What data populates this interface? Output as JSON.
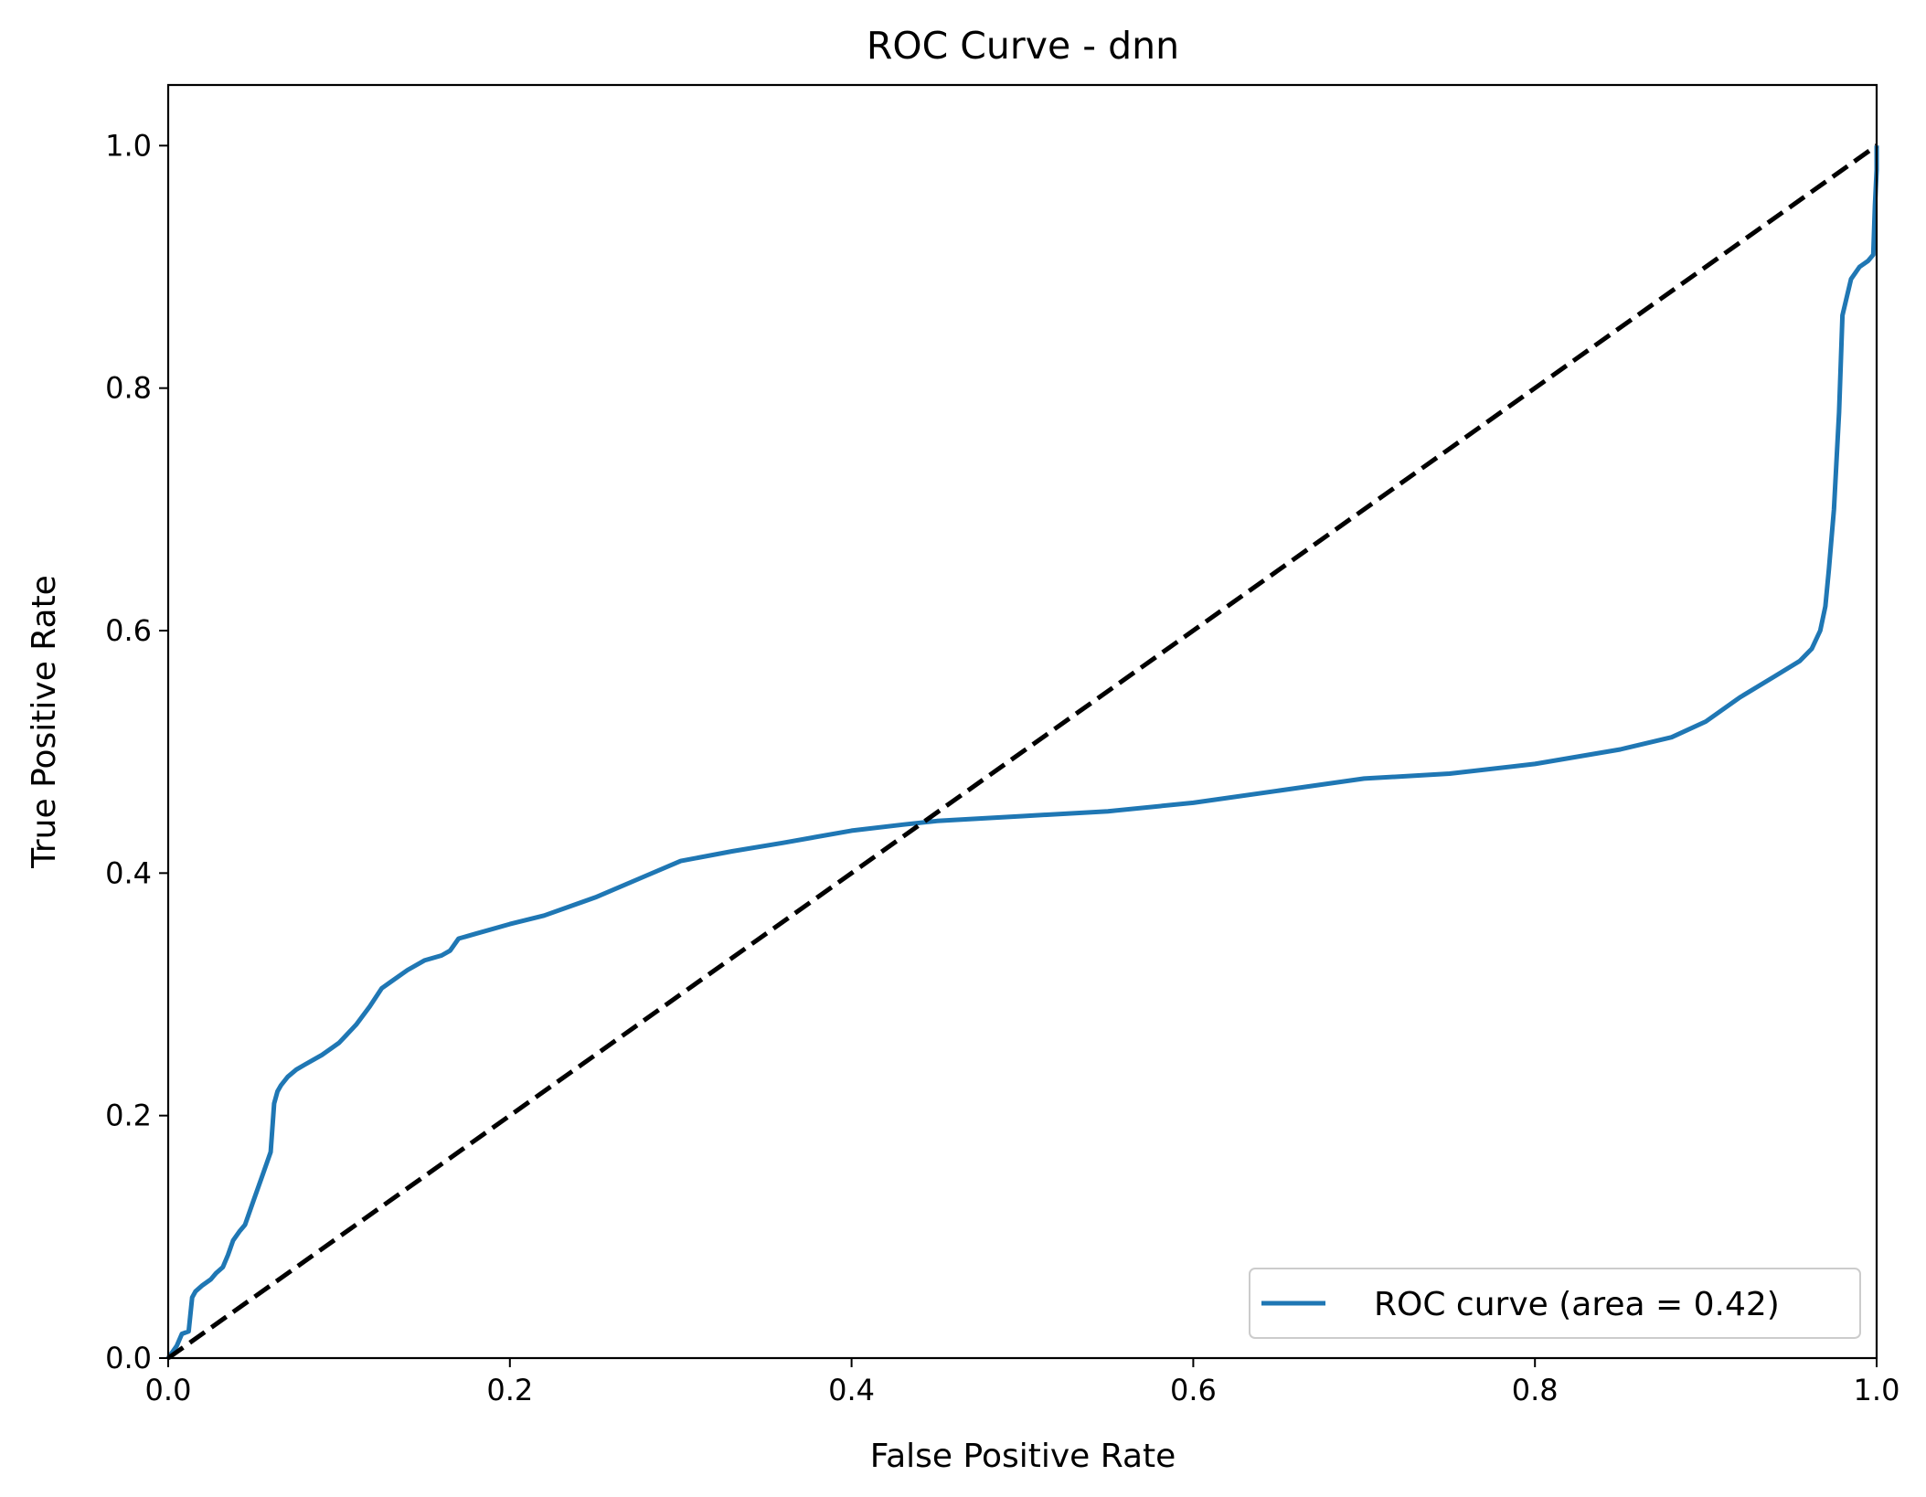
{
  "chart_data": {
    "type": "line",
    "title": "ROC Curve - dnn",
    "xlabel": "False Positive Rate",
    "ylabel": "True Positive Rate",
    "xlim": [
      0.0,
      1.0
    ],
    "ylim": [
      0.0,
      1.05
    ],
    "xticks": [
      "0.0",
      "0.2",
      "0.4",
      "0.6",
      "0.8",
      "1.0"
    ],
    "yticks": [
      "0.0",
      "0.2",
      "0.4",
      "0.6",
      "0.8",
      "1.0"
    ],
    "grid": false,
    "legend_position": "lower-right",
    "series": [
      {
        "name": "ROC curve (area = 0.42)",
        "color": "#1f77b4",
        "style": "solid",
        "x": [
          0.0,
          0.005,
          0.008,
          0.012,
          0.014,
          0.016,
          0.02,
          0.025,
          0.028,
          0.032,
          0.035,
          0.038,
          0.042,
          0.045,
          0.05,
          0.055,
          0.06,
          0.062,
          0.064,
          0.066,
          0.07,
          0.075,
          0.08,
          0.085,
          0.09,
          0.1,
          0.11,
          0.118,
          0.125,
          0.13,
          0.14,
          0.15,
          0.16,
          0.165,
          0.17,
          0.18,
          0.2,
          0.22,
          0.25,
          0.28,
          0.3,
          0.33,
          0.36,
          0.4,
          0.43,
          0.45,
          0.5,
          0.55,
          0.6,
          0.65,
          0.7,
          0.75,
          0.8,
          0.85,
          0.88,
          0.9,
          0.92,
          0.94,
          0.955,
          0.962,
          0.967,
          0.97,
          0.972,
          0.975,
          0.978,
          0.98,
          0.985,
          0.99,
          0.995,
          0.998,
          0.999,
          1.0,
          1.0
        ],
        "y": [
          0.0,
          0.01,
          0.02,
          0.022,
          0.05,
          0.055,
          0.06,
          0.065,
          0.07,
          0.075,
          0.085,
          0.097,
          0.105,
          0.11,
          0.13,
          0.15,
          0.17,
          0.21,
          0.22,
          0.225,
          0.232,
          0.238,
          0.242,
          0.246,
          0.25,
          0.26,
          0.275,
          0.29,
          0.305,
          0.31,
          0.32,
          0.328,
          0.332,
          0.336,
          0.346,
          0.35,
          0.358,
          0.365,
          0.38,
          0.398,
          0.41,
          0.418,
          0.425,
          0.435,
          0.44,
          0.443,
          0.447,
          0.451,
          0.458,
          0.468,
          0.478,
          0.482,
          0.49,
          0.502,
          0.512,
          0.525,
          0.545,
          0.562,
          0.575,
          0.585,
          0.6,
          0.62,
          0.65,
          0.7,
          0.78,
          0.86,
          0.89,
          0.9,
          0.905,
          0.91,
          0.95,
          0.98,
          1.0
        ]
      },
      {
        "name": "",
        "color": "#000000",
        "style": "dashed",
        "x": [
          0.0,
          1.0
        ],
        "y": [
          0.0,
          1.0
        ]
      }
    ],
    "legend_entries": [
      "ROC curve (area = 0.42)"
    ]
  }
}
